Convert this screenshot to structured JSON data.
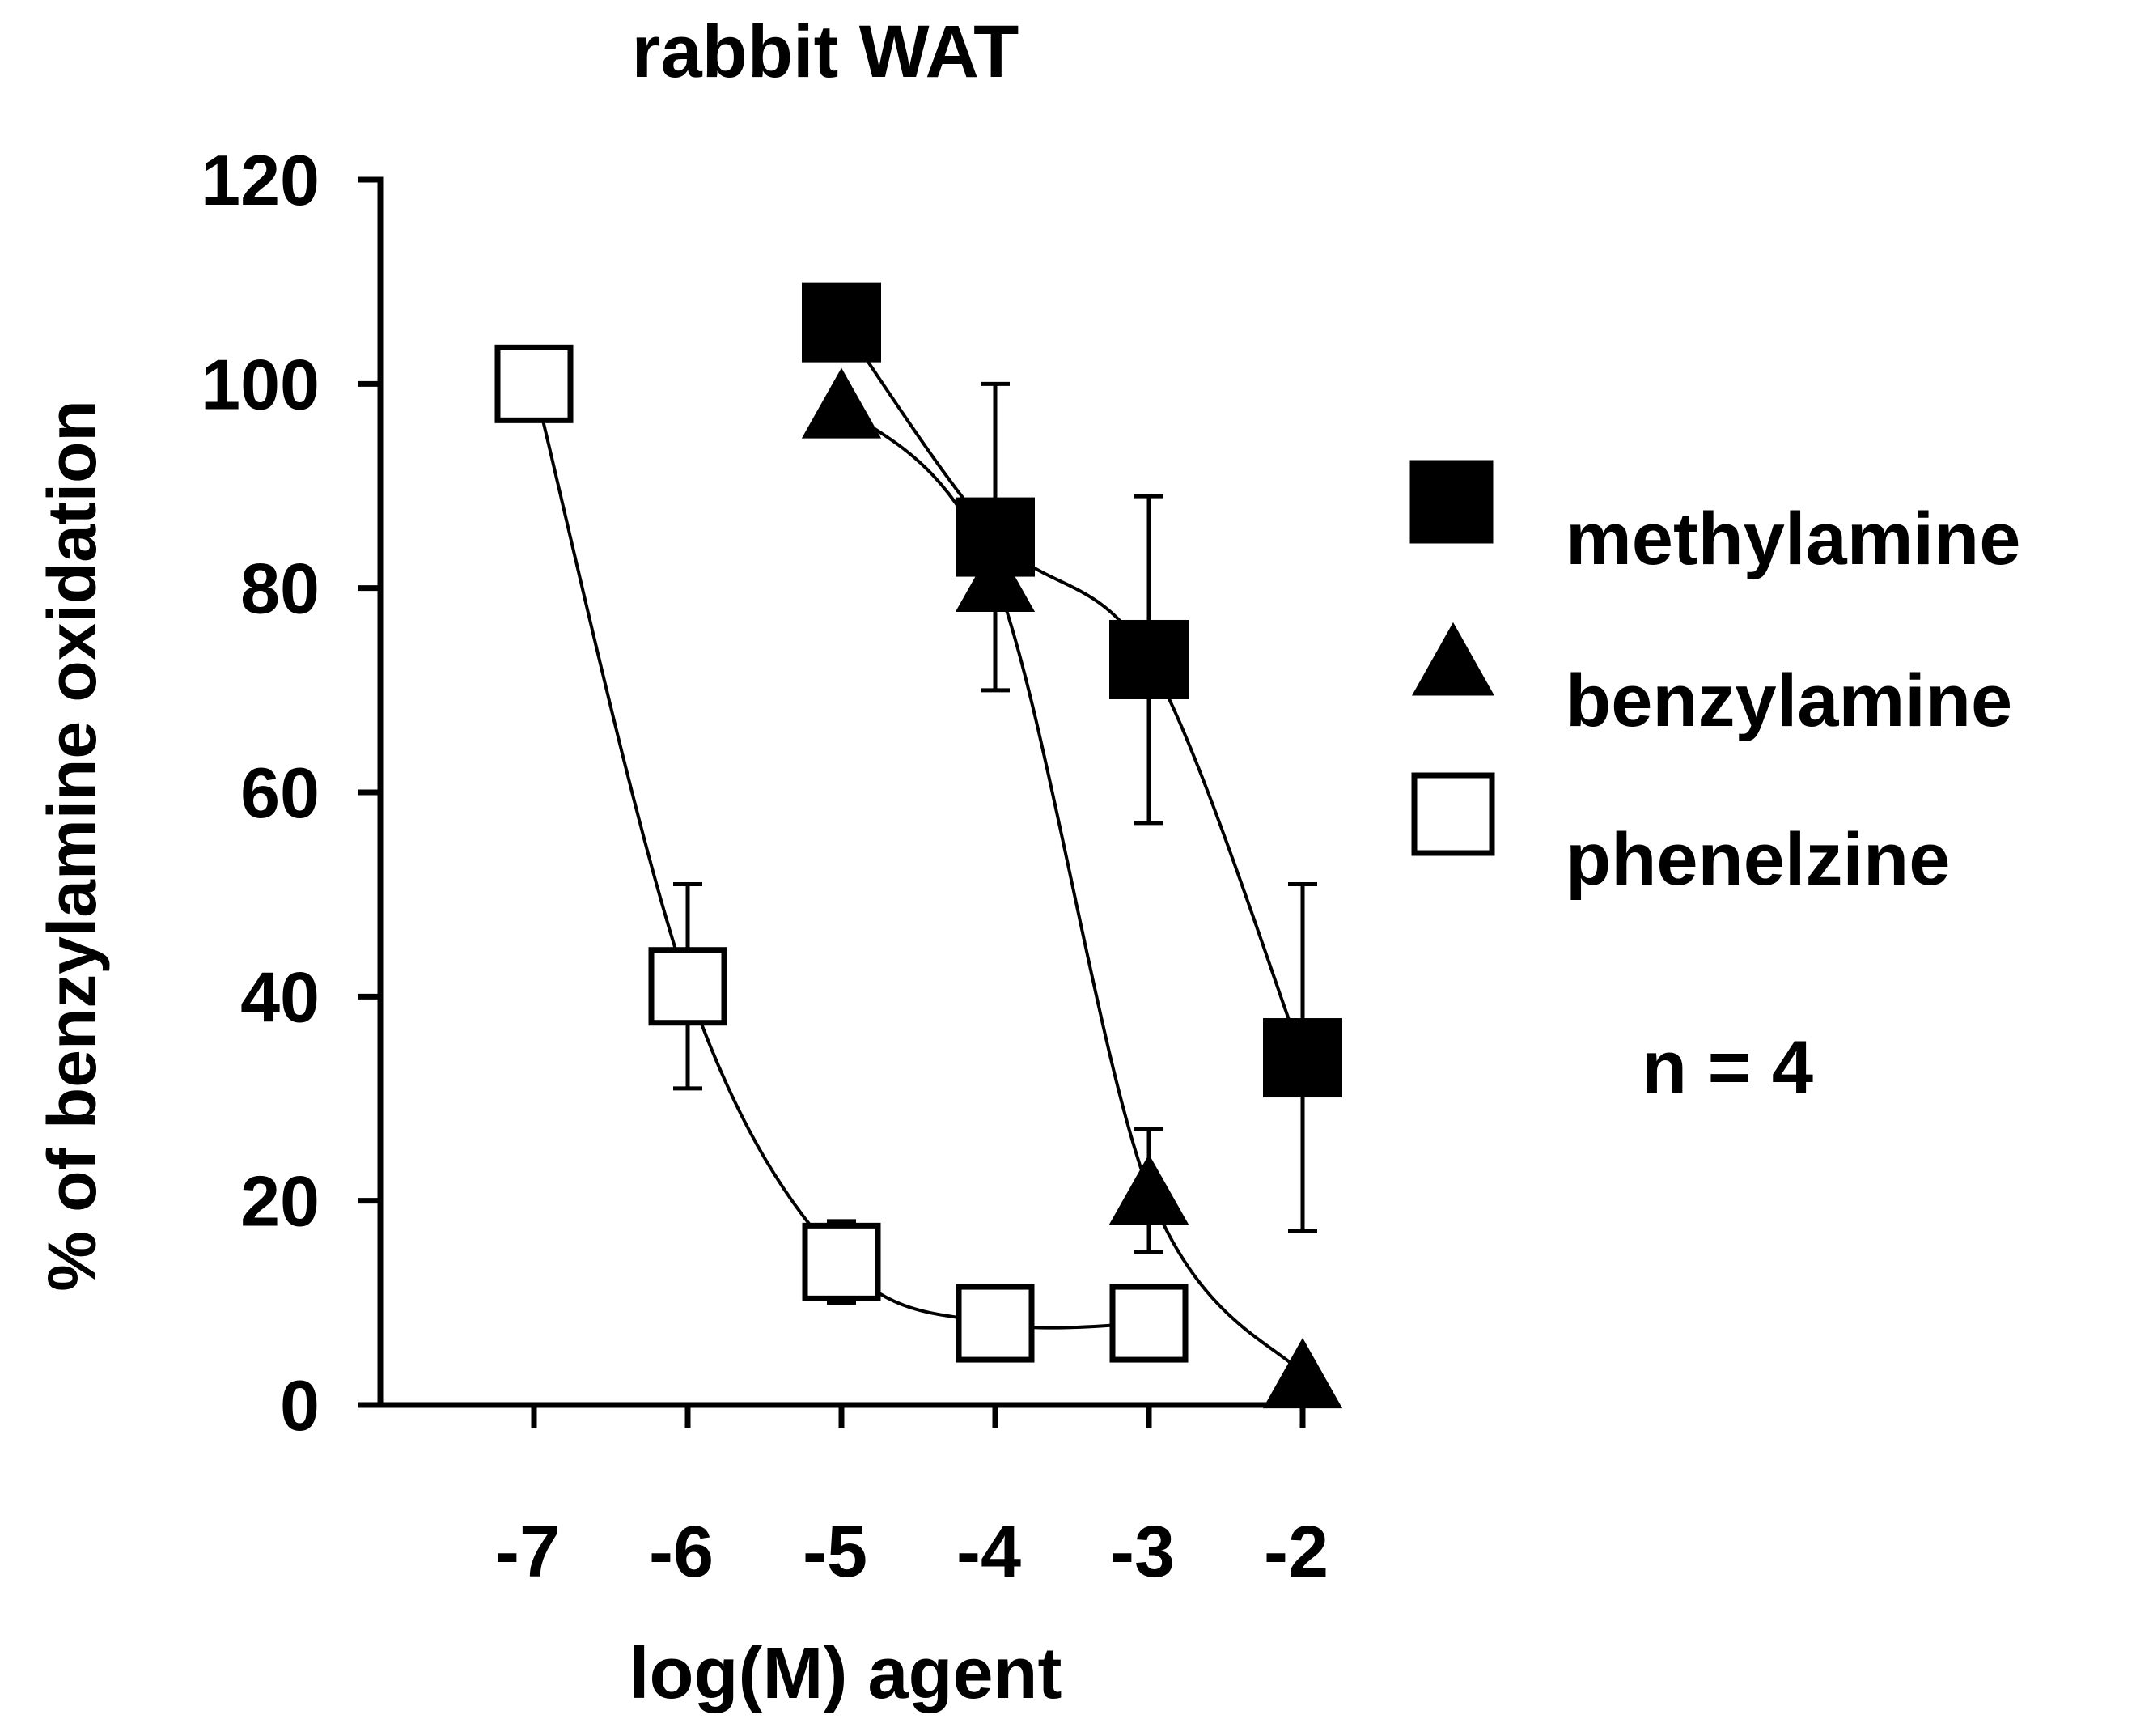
{
  "chart_data": {
    "type": "scatter",
    "title": "rabbit WAT",
    "xlabel": "log(M) agent",
    "ylabel": "% of benzylamine oxidation",
    "x_ticks": [
      -7,
      -6,
      -5,
      -4,
      -3,
      -2
    ],
    "x_tick_labels": [
      "-7",
      "-6",
      "-5",
      "-4",
      "-3",
      "-2"
    ],
    "y_ticks": [
      0,
      20,
      40,
      60,
      80,
      100,
      120
    ],
    "y_tick_labels": [
      "0",
      "20",
      "40",
      "60",
      "80",
      "100",
      "120"
    ],
    "xlim": [
      -8,
      -2
    ],
    "ylim": [
      0,
      120
    ],
    "grid": false,
    "legend_position": "right",
    "annotation": "n = 4",
    "series": [
      {
        "name": "methylamine",
        "marker": "filled-square",
        "x": [
          -5,
          -4,
          -3,
          -2
        ],
        "y": [
          106,
          85,
          73,
          34
        ],
        "err": [
          null,
          15,
          16,
          17
        ]
      },
      {
        "name": "benzylamine",
        "marker": "filled-triangle",
        "x": [
          -5,
          -4,
          -3,
          -2
        ],
        "y": [
          98,
          81,
          21,
          3
        ],
        "err": [
          null,
          null,
          6,
          null
        ]
      },
      {
        "name": "phenelzine",
        "marker": "open-square",
        "x": [
          -7,
          -6,
          -5,
          -4,
          -3
        ],
        "y": [
          100,
          41,
          14,
          8,
          8
        ],
        "err": [
          null,
          10,
          4,
          null,
          null
        ]
      }
    ]
  }
}
